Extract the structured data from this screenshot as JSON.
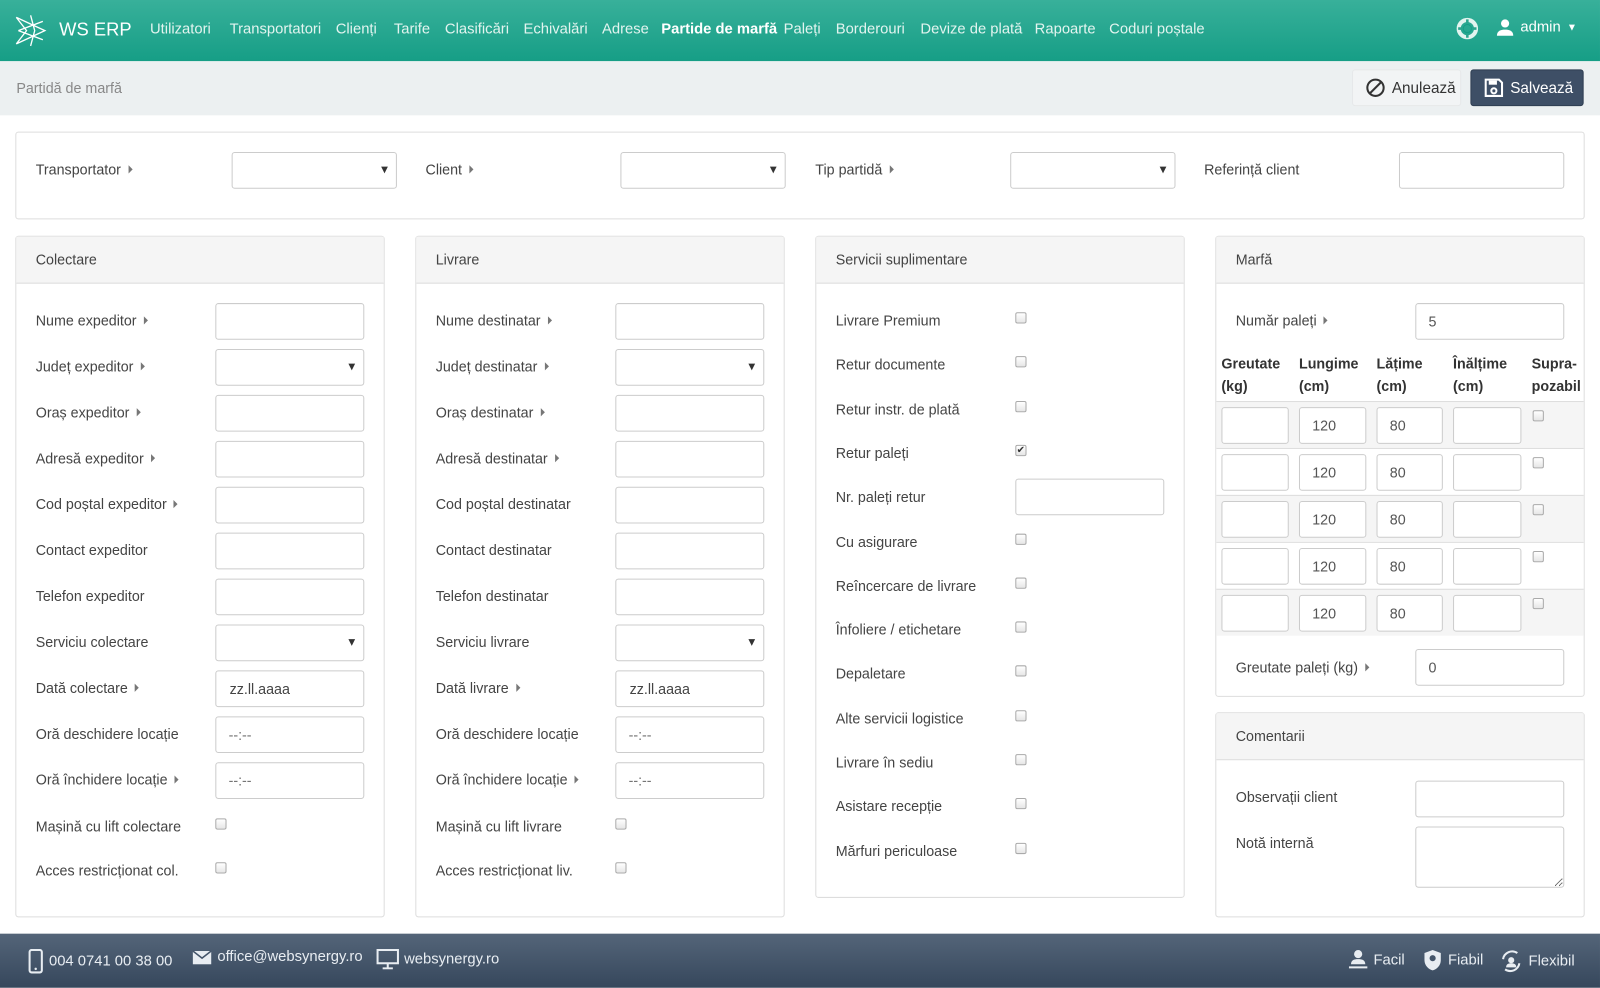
{
  "header": {
    "brand": "WS ERP",
    "nav": [
      "Utilizatori",
      "Transportatori",
      "Clienți",
      "Tarife",
      "Clasificări",
      "Echivalări",
      "Adrese",
      "Partide de marfă",
      "Paleți",
      "Borderouri",
      "Devize de plată",
      "Rapoarte",
      "Coduri poștale"
    ],
    "active_nav": "Partide de marfă",
    "user": "admin",
    "accent": "#1fa68c"
  },
  "subheader": {
    "title": "Partidă de marfă",
    "cancel": "Anulează",
    "save": "Salvează"
  },
  "top": {
    "fields": [
      {
        "label": "Transportator",
        "type": "select",
        "required": true,
        "value": ""
      },
      {
        "label": "Client",
        "type": "select",
        "required": true,
        "value": ""
      },
      {
        "label": "Tip partidă",
        "type": "select",
        "required": true,
        "value": ""
      },
      {
        "label": "Referință client",
        "type": "text",
        "required": false,
        "value": ""
      }
    ]
  },
  "collection": {
    "title": "Colectare",
    "fields": [
      {
        "label": "Nume expeditor",
        "type": "text",
        "required": true,
        "value": ""
      },
      {
        "label": "Județ expeditor",
        "type": "select",
        "required": true,
        "value": ""
      },
      {
        "label": "Oraș expeditor",
        "type": "text",
        "required": true,
        "value": ""
      },
      {
        "label": "Adresă expeditor",
        "type": "text",
        "required": true,
        "value": ""
      },
      {
        "label": "Cod poștal expeditor",
        "type": "text",
        "required": true,
        "value": ""
      },
      {
        "label": "Contact expeditor",
        "type": "text",
        "required": false,
        "value": ""
      },
      {
        "label": "Telefon expeditor",
        "type": "text",
        "required": false,
        "value": ""
      },
      {
        "label": "Serviciu colectare",
        "type": "select",
        "required": false,
        "value": ""
      },
      {
        "label": "Dată colectare",
        "type": "text",
        "required": true,
        "placeholder": "zz.ll.aaaa"
      },
      {
        "label": "Oră deschidere locație",
        "type": "text",
        "required": false,
        "placeholder": "--:--"
      },
      {
        "label": "Oră închidere locație",
        "type": "text",
        "required": true,
        "placeholder": "--:--"
      },
      {
        "label": "Mașină cu lift colectare",
        "type": "checkbox",
        "checked": false
      },
      {
        "label": "Acces restricționat col.",
        "type": "checkbox",
        "checked": false
      }
    ]
  },
  "delivery": {
    "title": "Livrare",
    "fields": [
      {
        "label": "Nume destinatar",
        "type": "text",
        "required": true,
        "value": ""
      },
      {
        "label": "Județ destinatar",
        "type": "select",
        "required": true,
        "value": ""
      },
      {
        "label": "Oraș destinatar",
        "type": "text",
        "required": true,
        "value": ""
      },
      {
        "label": "Adresă destinatar",
        "type": "text",
        "required": true,
        "value": ""
      },
      {
        "label": "Cod poștal destinatar",
        "type": "text",
        "required": false,
        "value": ""
      },
      {
        "label": "Contact destinatar",
        "type": "text",
        "required": false,
        "value": ""
      },
      {
        "label": "Telefon destinatar",
        "type": "text",
        "required": false,
        "value": ""
      },
      {
        "label": "Serviciu livrare",
        "type": "select",
        "required": false,
        "value": ""
      },
      {
        "label": "Dată livrare",
        "type": "text",
        "required": true,
        "placeholder": "zz.ll.aaaa"
      },
      {
        "label": "Oră deschidere locație",
        "type": "text",
        "required": false,
        "placeholder": "--:--"
      },
      {
        "label": "Oră închidere locație",
        "type": "text",
        "required": true,
        "placeholder": "--:--"
      },
      {
        "label": "Mașină cu lift livrare",
        "type": "checkbox",
        "checked": false
      },
      {
        "label": "Acces restricționat liv.",
        "type": "checkbox",
        "checked": false
      }
    ]
  },
  "services": {
    "title": "Servicii suplimentare",
    "fields": [
      {
        "label": "Livrare Premium",
        "type": "checkbox",
        "checked": false
      },
      {
        "label": "Retur documente",
        "type": "checkbox",
        "checked": false
      },
      {
        "label": "Retur instr. de plată",
        "type": "checkbox",
        "checked": false
      },
      {
        "label": "Retur paleți",
        "type": "checkbox",
        "checked": true
      },
      {
        "label": "Nr. paleți retur",
        "type": "text",
        "value": ""
      },
      {
        "label": "Cu asigurare",
        "type": "checkbox",
        "checked": false
      },
      {
        "label": "Reîncercare de livrare",
        "type": "checkbox",
        "checked": false
      },
      {
        "label": "Înfoliere / etichetare",
        "type": "checkbox",
        "checked": false
      },
      {
        "label": "Depaletare",
        "type": "checkbox",
        "checked": false
      },
      {
        "label": "Alte servicii logistice",
        "type": "checkbox",
        "checked": false
      },
      {
        "label": "Livrare în sediu",
        "type": "checkbox",
        "checked": false
      },
      {
        "label": "Asistare recepție",
        "type": "checkbox",
        "checked": false
      },
      {
        "label": "Mărfuri periculoase",
        "type": "checkbox",
        "checked": false
      }
    ]
  },
  "goods": {
    "title": "Marfă",
    "pallet_count_label": "Număr paleți",
    "pallet_count": "5",
    "columns": [
      [
        "Greutate",
        "(kg)"
      ],
      [
        "Lungime",
        "(cm)"
      ],
      [
        "Lățime",
        "(cm)"
      ],
      [
        "Înălțime",
        "(cm)"
      ],
      [
        "Supra-",
        "pozabil"
      ]
    ],
    "rows": [
      {
        "weight": "",
        "length": "120",
        "width": "80",
        "height": "",
        "stackable": false
      },
      {
        "weight": "",
        "length": "120",
        "width": "80",
        "height": "",
        "stackable": false
      },
      {
        "weight": "",
        "length": "120",
        "width": "80",
        "height": "",
        "stackable": false
      },
      {
        "weight": "",
        "length": "120",
        "width": "80",
        "height": "",
        "stackable": false
      },
      {
        "weight": "",
        "length": "120",
        "width": "80",
        "height": "",
        "stackable": false
      }
    ],
    "total_weight_label": "Greutate paleți (kg)",
    "total_weight": "0"
  },
  "comments": {
    "title": "Comentarii",
    "client_notes_label": "Observații client",
    "client_notes": "",
    "internal_note_label": "Notă internă",
    "internal_note": ""
  },
  "footer": {
    "phone": "004 0741 00 38 00",
    "email": "office@websynergy.ro",
    "website": "websynergy.ro",
    "tags": [
      "Facil",
      "Fiabil",
      "Flexibil"
    ]
  }
}
